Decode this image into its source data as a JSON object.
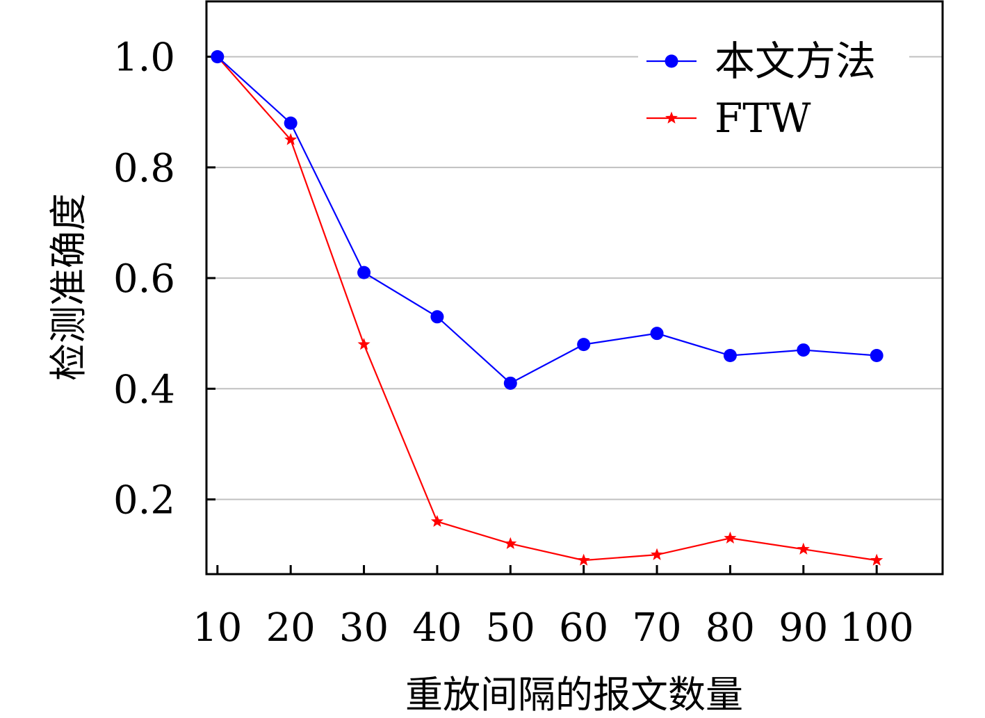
{
  "chart_data": {
    "type": "line",
    "xlabel": "重放间隔的报文数量",
    "ylabel": "检测准确度",
    "x": [
      10,
      20,
      30,
      40,
      50,
      60,
      70,
      80,
      90,
      100
    ],
    "xticks": [
      "10",
      "20",
      "30",
      "40",
      "50",
      "60",
      "70",
      "80",
      "90",
      "100"
    ],
    "yticks": [
      "0.2",
      "0.4",
      "0.6",
      "0.8",
      "1.0"
    ],
    "xlim": [
      8.5,
      109
    ],
    "ylim": [
      0.065,
      1.1
    ],
    "grid": "horizontal",
    "legend_position": "top-right",
    "series": [
      {
        "name": "本文方法",
        "color": "#0000ff",
        "marker": "circle",
        "values": [
          1.0,
          0.88,
          0.61,
          0.53,
          0.41,
          0.48,
          0.5,
          0.46,
          0.47,
          0.46
        ]
      },
      {
        "name": "FTW",
        "color": "#ff0000",
        "marker": "star",
        "values": [
          1.0,
          0.85,
          0.48,
          0.16,
          0.12,
          0.09,
          0.1,
          0.13,
          0.11,
          0.09
        ]
      }
    ]
  }
}
